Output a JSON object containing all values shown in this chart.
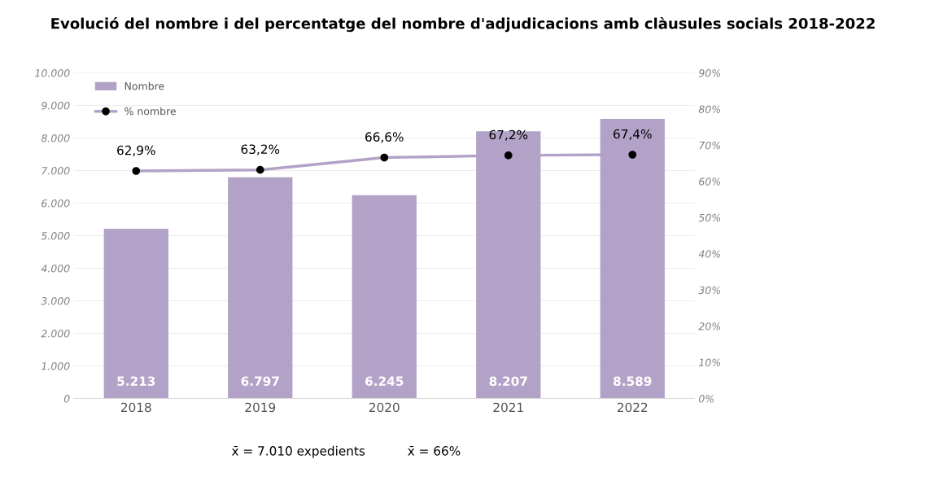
{
  "chart_data": {
    "type": "bar",
    "title": "Evolució del nombre i del percentatge del nombre d'adjudicacions amb clàusules socials 2018-2022",
    "categories": [
      "2018",
      "2019",
      "2020",
      "2021",
      "2022"
    ],
    "series": [
      {
        "name": "Nombre",
        "color": "#b3a2c7",
        "values": [
          5213,
          6797,
          6245,
          8207,
          8589
        ],
        "value_labels": [
          "5.213",
          "6.797",
          "6.245",
          "8.207",
          "8.589"
        ]
      },
      {
        "name": "% nombre",
        "type": "line",
        "axis": "y2",
        "color": "#b3a2c7",
        "values": [
          62.9,
          63.2,
          66.6,
          67.2,
          67.4
        ],
        "value_labels": [
          "62,9%",
          "63,2%",
          "66,6%",
          "67,2%",
          "67,4%"
        ]
      }
    ],
    "ylim": [
      0,
      10000
    ],
    "yticks": [
      0,
      {
        "value": 1000,
        "label": "1.000"
      },
      {
        "value": 2000,
        "label": "2.000"
      },
      {
        "value": 3000,
        "label": "3.000"
      },
      {
        "value": 4000,
        "label": "4.000"
      },
      {
        "value": 5000,
        "label": "5.000"
      },
      {
        "value": 6000,
        "label": "6.000"
      },
      {
        "value": 7000,
        "label": "7.000"
      },
      {
        "value": 8000,
        "label": "8.000"
      },
      {
        "value": 9000,
        "label": "9.000"
      },
      {
        "value": 10000,
        "label": "10.000"
      }
    ],
    "y2lim": [
      0,
      90
    ],
    "y2ticks": [
      {
        "value": 0,
        "label": "0%"
      },
      {
        "value": 10,
        "label": "10%"
      },
      {
        "value": 20,
        "label": "20%"
      },
      {
        "value": 30,
        "label": "30%"
      },
      {
        "value": 40,
        "label": "40%"
      },
      {
        "value": 50,
        "label": "50%"
      },
      {
        "value": 60,
        "label": "60%"
      },
      {
        "value": 70,
        "label": "70%"
      },
      {
        "value": 80,
        "label": "80%"
      },
      {
        "value": 90,
        "label": "90%"
      }
    ],
    "grid": "y",
    "legend": "top left",
    "marker": "circle",
    "annotations": [
      "x̄ = 7.010 expedients",
      "x̄ = 66%"
    ]
  }
}
